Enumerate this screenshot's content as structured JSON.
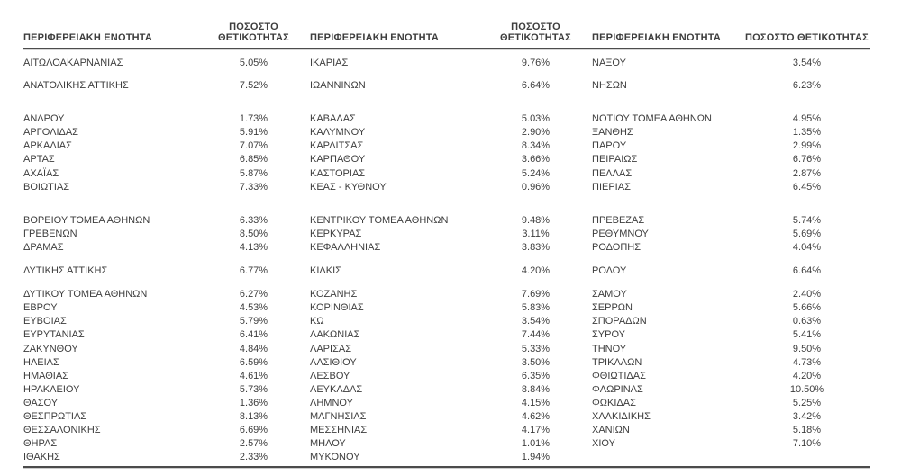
{
  "page": {
    "background": "#ffffff",
    "text_color": "#3d3d3d",
    "rule_color": "#4c4c4c"
  },
  "table": {
    "headers": [
      "ΠΕΡΙΦΕΡΕΙΑΚΗ ΕΝΟΤΗΤΑ",
      "ΠΟΣΟΣΤΟ ΘΕΤΙΚΟΤΗΤΑΣ",
      "ΠΕΡΙΦΕΡΕΙΑΚΗ ΕΝΟΤΗΤΑ",
      "ΠΟΣΟΣΤΟ ΘΕΤΙΚΟΤΗΤΑΣ",
      "ΠΕΡΙΦΕΡΕΙΑΚΗ ΕΝΟΤΗΤΑ",
      "ΠΟΣΟΣΤΟ ΘΕΤΙΚΟΤΗΤΑΣ"
    ],
    "rows": [
      {
        "cells": [
          "ΑΙΤΩΛΟΑΚΑΡΝΑΝΙΑΣ",
          "5.05%",
          "ΙΚΑΡΙΑΣ",
          "9.76%",
          "ΝΑΞΟΥ",
          "3.54%"
        ]
      },
      {
        "spacer": 10
      },
      {
        "cells": [
          "ΑΝΑΤΟΛΙΚΗΣ ΑΤΤΙΚΗΣ",
          "7.52%",
          "ΙΩΑΝΝΙΝΩΝ",
          "6.64%",
          "ΝΗΣΩΝ",
          "6.23%"
        ]
      },
      {
        "spacer": 22
      },
      {
        "cells": [
          "ΑΝΔΡΟΥ",
          "1.73%",
          "ΚΑΒΑΛΑΣ",
          "5.03%",
          "ΝΟΤΙΟΥ ΤΟΜΕΑ ΑΘΗΝΩΝ",
          "4.95%"
        ]
      },
      {
        "cells": [
          "ΑΡΓΟΛΙΔΑΣ",
          "5.91%",
          "ΚΑΛΥΜΝΟΥ",
          "2.90%",
          "ΞΑΝΘΗΣ",
          "1.35%"
        ]
      },
      {
        "cells": [
          "ΑΡΚΑΔΙΑΣ",
          "7.07%",
          "ΚΑΡΔΙΤΣΑΣ",
          "8.34%",
          "ΠΑΡΟΥ",
          "2.99%"
        ]
      },
      {
        "cells": [
          "ΑΡΤΑΣ",
          "6.85%",
          "ΚΑΡΠΑΘΟΥ",
          "3.66%",
          "ΠΕΙΡΑΙΩΣ",
          "6.76%"
        ]
      },
      {
        "cells": [
          "ΑΧΑΪΑΣ",
          "5.87%",
          "ΚΑΣΤΟΡΙΑΣ",
          "5.24%",
          "ΠΕΛΛΑΣ",
          "2.87%"
        ]
      },
      {
        "cells": [
          "ΒΟΙΩΤΙΑΣ",
          "7.33%",
          "ΚΕΑΣ - ΚΥΘΝΟΥ",
          "0.96%",
          "ΠΙΕΡΙΑΣ",
          "6.45%"
        ]
      },
      {
        "spacer": 22
      },
      {
        "cells": [
          "ΒΟΡΕΙΟΥ ΤΟΜΕΑ ΑΘΗΝΩΝ",
          "6.33%",
          "ΚΕΝΤΡΙΚΟΥ ΤΟΜΕΑ ΑΘΗΝΩΝ",
          "9.48%",
          "ΠΡΕΒΕΖΑΣ",
          "5.74%"
        ]
      },
      {
        "cells": [
          "ΓΡΕΒΕΝΩΝ",
          "8.50%",
          "ΚΕΡΚΥΡΑΣ",
          "3.11%",
          "ΡΕΘΥΜΝΟΥ",
          "5.69%"
        ]
      },
      {
        "cells": [
          "ΔΡΑΜΑΣ",
          "4.13%",
          "ΚΕΦΑΛΛΗΝΙΑΣ",
          "3.83%",
          "ΡΟΔΟΠΗΣ",
          "4.04%"
        ]
      },
      {
        "spacer": 11
      },
      {
        "cells": [
          "ΔΥΤΙΚΗΣ ΑΤΤΙΚΗΣ",
          "6.77%",
          "ΚΙΛΚΙΣ",
          "4.20%",
          "ΡΟΔΟΥ",
          "6.64%"
        ]
      },
      {
        "spacer": 11
      },
      {
        "cells": [
          "ΔΥΤΙΚΟΥ ΤΟΜΕΑ ΑΘΗΝΩΝ",
          "6.27%",
          "ΚΟΖΑΝΗΣ",
          "7.69%",
          "ΣΑΜΟΥ",
          "2.40%"
        ]
      },
      {
        "cells": [
          "ΕΒΡΟΥ",
          "4.53%",
          "ΚΟΡΙΝΘΙΑΣ",
          "5.83%",
          "ΣΕΡΡΩΝ",
          "5.66%"
        ]
      },
      {
        "cells": [
          "ΕΥΒΟΙΑΣ",
          "5.79%",
          "ΚΩ",
          "3.54%",
          "ΣΠΟΡΑΔΩΝ",
          "0.63%"
        ]
      },
      {
        "cells": [
          "ΕΥΡΥΤΑΝΙΑΣ",
          "6.41%",
          "ΛΑΚΩΝΙΑΣ",
          "7.44%",
          "ΣΥΡΟΥ",
          "5.41%"
        ]
      },
      {
        "cells": [
          "ΖΑΚΥΝΘΟΥ",
          "4.84%",
          "ΛΑΡΙΣΑΣ",
          "5.33%",
          "ΤΗΝΟΥ",
          "9.50%"
        ]
      },
      {
        "cells": [
          "ΗΛΕΙΑΣ",
          "6.59%",
          "ΛΑΣΙΘΙΟΥ",
          "3.50%",
          "ΤΡΙΚΑΛΩΝ",
          "4.73%"
        ]
      },
      {
        "cells": [
          "ΗΜΑΘΙΑΣ",
          "4.61%",
          "ΛΕΣΒΟΥ",
          "6.35%",
          "ΦΘΙΩΤΙΔΑΣ",
          "4.20%"
        ]
      },
      {
        "cells": [
          "ΗΡΑΚΛΕΙΟΥ",
          "5.73%",
          "ΛΕΥΚΑΔΑΣ",
          "8.84%",
          "ΦΛΩΡΙΝΑΣ",
          "10.50%"
        ]
      },
      {
        "cells": [
          "ΘΑΣΟΥ",
          "1.36%",
          "ΛΗΜΝΟΥ",
          "4.15%",
          "ΦΩΚΙΔΑΣ",
          "5.25%"
        ]
      },
      {
        "cells": [
          "ΘΕΣΠΡΩΤΙΑΣ",
          "8.13%",
          "ΜΑΓΝΗΣΙΑΣ",
          "4.62%",
          "ΧΑΛΚΙΔΙΚΗΣ",
          "3.42%"
        ]
      },
      {
        "cells": [
          "ΘΕΣΣΑΛΟΝΙΚΗΣ",
          "6.69%",
          "ΜΕΣΣΗΝΙΑΣ",
          "4.17%",
          "ΧΑΝΙΩΝ",
          "5.18%"
        ]
      },
      {
        "cells": [
          "ΘΗΡΑΣ",
          "2.57%",
          "ΜΗΛΟΥ",
          "1.01%",
          "ΧΙΟΥ",
          "7.10%"
        ]
      },
      {
        "cells": [
          "ΙΘΑΚΗΣ",
          "2.33%",
          "ΜΥΚΟΝΟΥ",
          "1.94%",
          "",
          ""
        ]
      }
    ]
  }
}
